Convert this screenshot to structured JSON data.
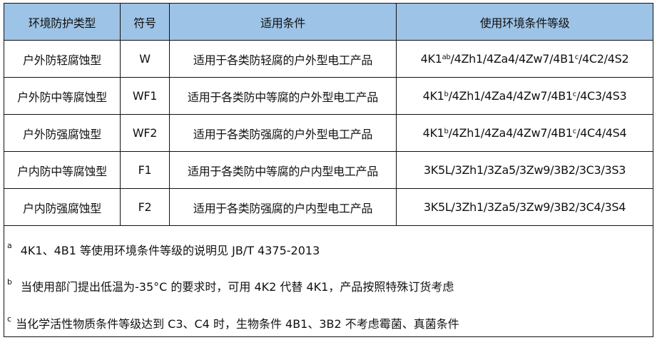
{
  "header": [
    "环境防护类型",
    "符号",
    "适用条件",
    "使用环境条件等级"
  ],
  "rows": [
    {
      "type": "户外防轻腐蚀型",
      "symbol": "W",
      "condition": "适用于各类防轻腐的户外型电工产品",
      "grade": [
        {
          "t": "4K1"
        },
        {
          "s": "ab"
        },
        {
          "t": "/4Zh1/4Za4/4Zw7/4B1"
        },
        {
          "s": "c"
        },
        {
          "t": "/4C2/4S2"
        }
      ]
    },
    {
      "type": "户外防中等腐蚀型",
      "symbol": "WF1",
      "condition": "适用于各类防中等腐的户外型电工产品",
      "grade": [
        {
          "t": "4K1"
        },
        {
          "s": "b"
        },
        {
          "t": "/4Zh1/4Za4/4Zw7/4B1"
        },
        {
          "s": "c"
        },
        {
          "t": "/4C3/4S3"
        }
      ]
    },
    {
      "type": "户外防强腐蚀型",
      "symbol": "WF2",
      "condition": "适用于各类防强腐的户外型电工产品",
      "grade": [
        {
          "t": "4K1"
        },
        {
          "s": "b"
        },
        {
          "t": "/4Zh1/4Za4/4Zw7/4B1"
        },
        {
          "s": "c"
        },
        {
          "t": "/4C4/4S4"
        }
      ]
    },
    {
      "type": "户内防中等腐蚀型",
      "symbol": "F1",
      "condition": "适用于各类防中等腐的户内型电工产品",
      "grade": [
        {
          "t": "3K5L/3Zh1/3Za5/3Zw9/3B2/3C3/3S3"
        }
      ]
    },
    {
      "type": "户内防强腐蚀型",
      "symbol": "F2",
      "condition": "适用于各类防强腐的户内型电工产品",
      "grade": [
        {
          "t": "3K5L/3Zh1/3Za5/3Zw9/3B2/3C4/3S4"
        }
      ]
    }
  ],
  "notes": [
    {
      "mark": "a",
      "text": "4K1、4B1 等使用环境条件等级的说明见 JB/T 4375-2013"
    },
    {
      "mark": "b",
      "text": "当使用部门提出低温为-35°C 的要求时，可用 4K2 代替 4K1，产品按照特殊订货考虑"
    },
    {
      "mark": "c",
      "text": "当化学活性物质条件等级达到 C3、C4 时，生物条件 4B1、3B2 不考虑霉菌、真菌条件"
    }
  ],
  "colors": {
    "header_bg": "#9dc3e6",
    "border": "#111111"
  }
}
